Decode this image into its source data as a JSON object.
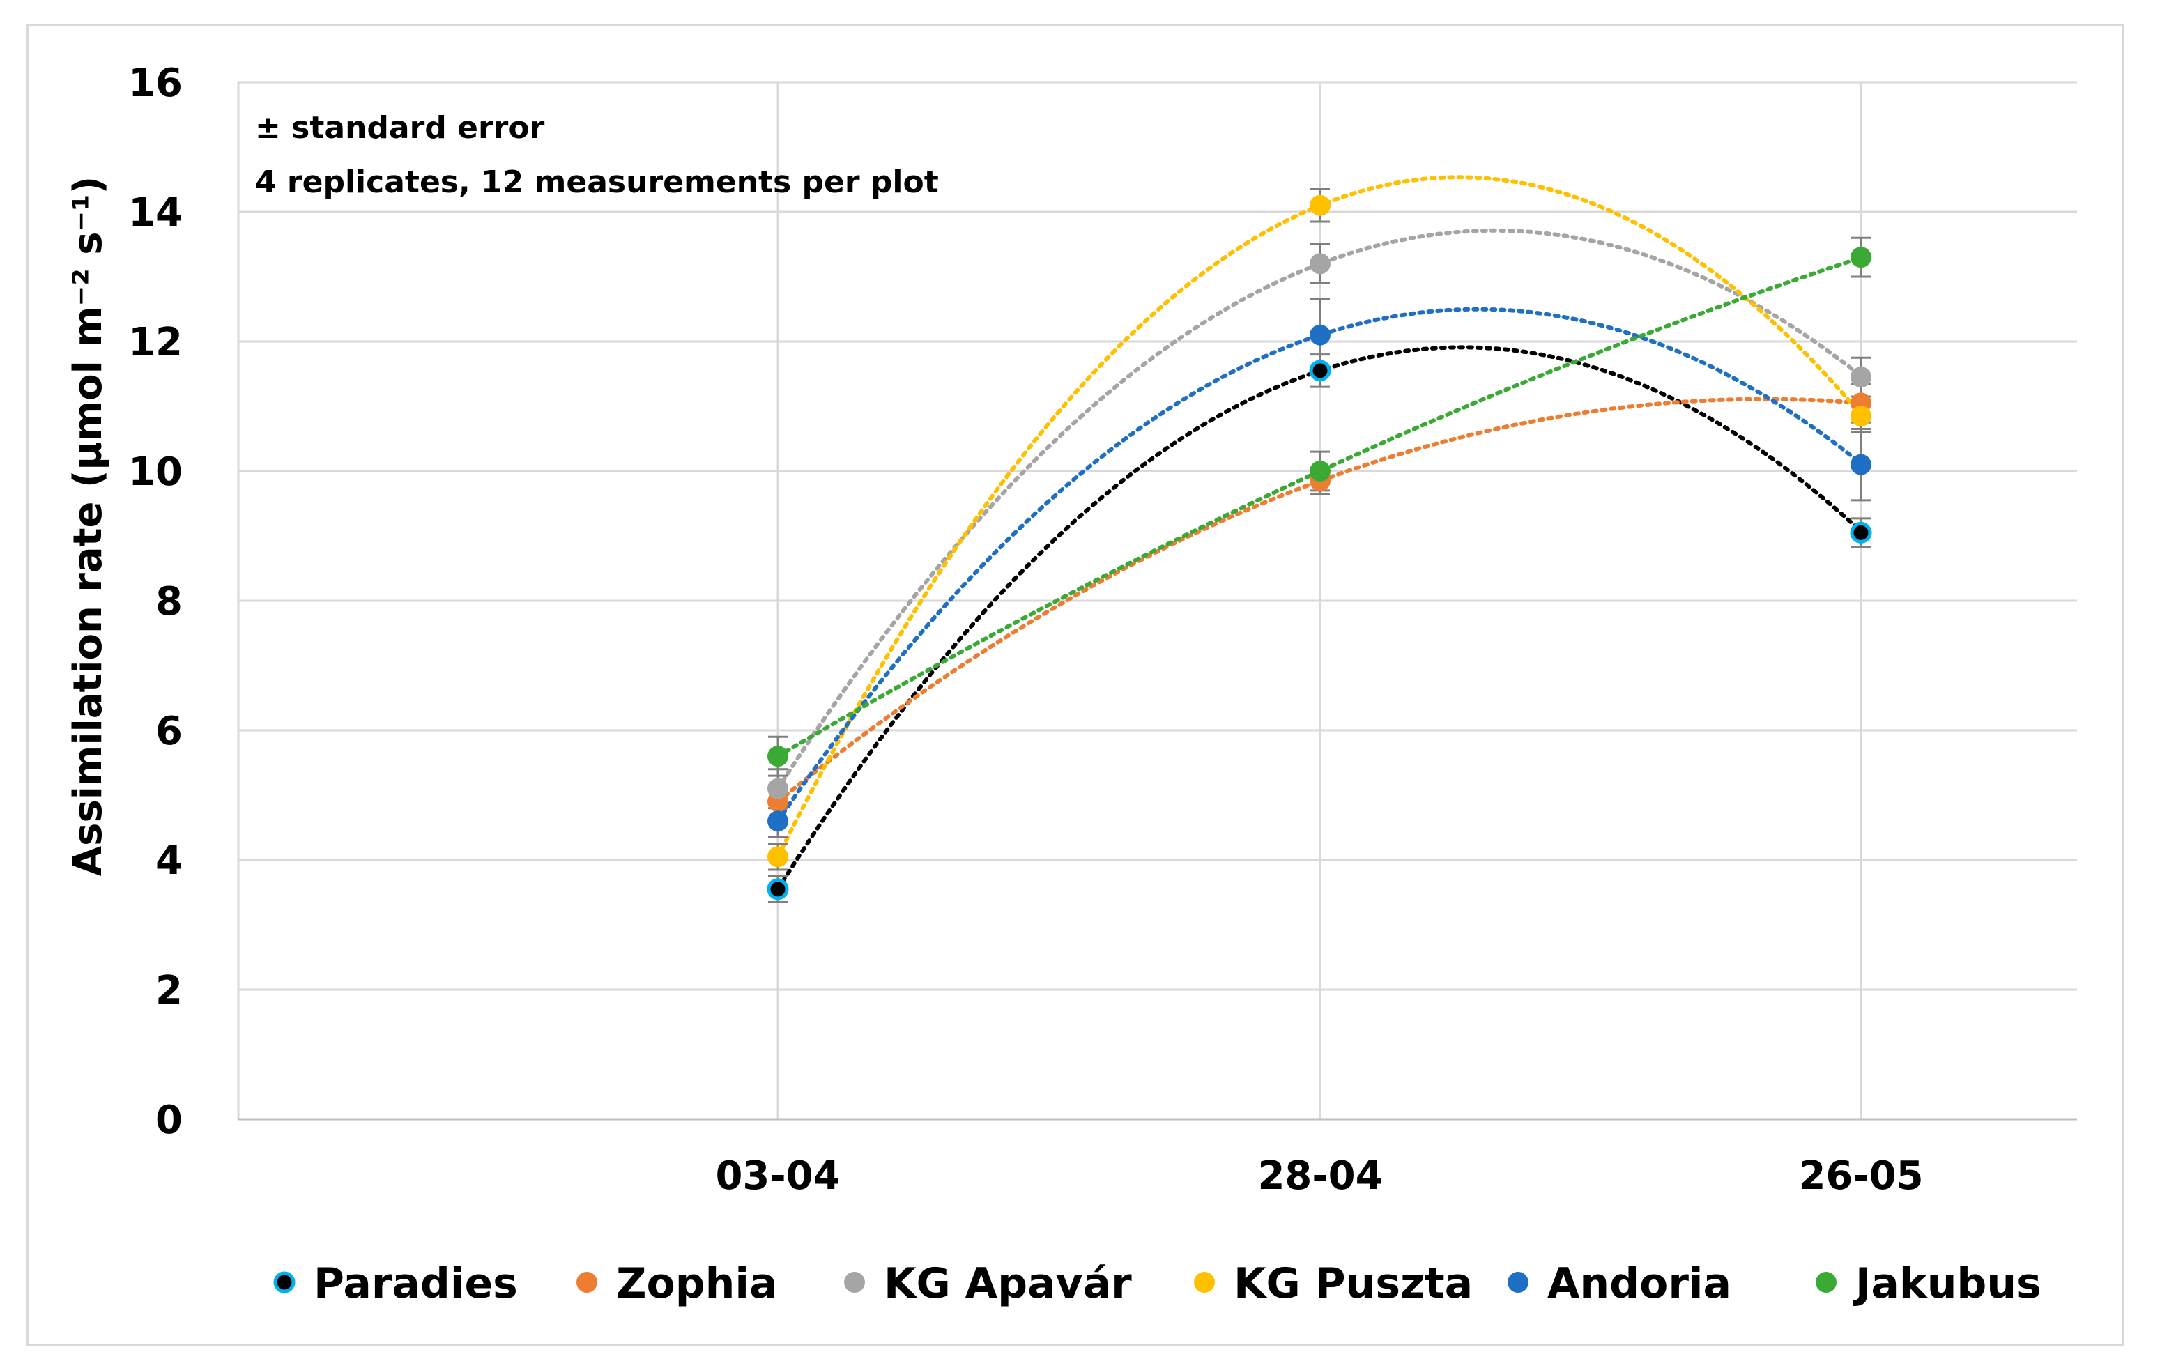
{
  "chart_data": {
    "type": "scatter",
    "title": "",
    "xlabel": "",
    "ylabel": "Assimilation rate (µmol m⁻² s⁻¹)",
    "categories": [
      "03-04",
      "28-04",
      "26-05"
    ],
    "ylim": [
      0,
      16
    ],
    "yticks": [
      0,
      2,
      4,
      6,
      8,
      10,
      12,
      14,
      16
    ],
    "grid": true,
    "legend_position": "bottom",
    "trendline": "polynomial (dotted)",
    "annotations": [
      "± standard error",
      "4 replicates, 12 measurements per plot"
    ],
    "series": [
      {
        "name": "Paradies",
        "color": "#000000",
        "marker_edge": "#00b0f0",
        "values": [
          3.55,
          11.55,
          9.05
        ],
        "errors": [
          0.2,
          0.25,
          0.22
        ]
      },
      {
        "name": "Zophia",
        "color": "#ed7d31",
        "values": [
          4.9,
          9.85,
          11.05
        ],
        "errors": [
          0.25,
          0.2,
          0.3
        ]
      },
      {
        "name": "KG Apavár",
        "color": "#a5a5a5",
        "values": [
          5.1,
          13.2,
          11.45
        ],
        "errors": [
          0.3,
          0.3,
          0.3
        ]
      },
      {
        "name": "KG Puszta",
        "color": "#ffc000",
        "values": [
          4.05,
          14.1,
          10.85
        ],
        "errors": [
          0.2,
          0.25,
          0.25
        ]
      },
      {
        "name": "Andoria",
        "color": "#1f6fc5",
        "values": [
          4.6,
          12.1,
          10.1
        ],
        "errors": [
          0.25,
          0.55,
          0.55
        ]
      },
      {
        "name": "Jakubus",
        "color": "#3aaa35",
        "values": [
          5.6,
          10.0,
          13.3
        ],
        "errors": [
          0.3,
          0.3,
          0.3
        ]
      }
    ]
  }
}
